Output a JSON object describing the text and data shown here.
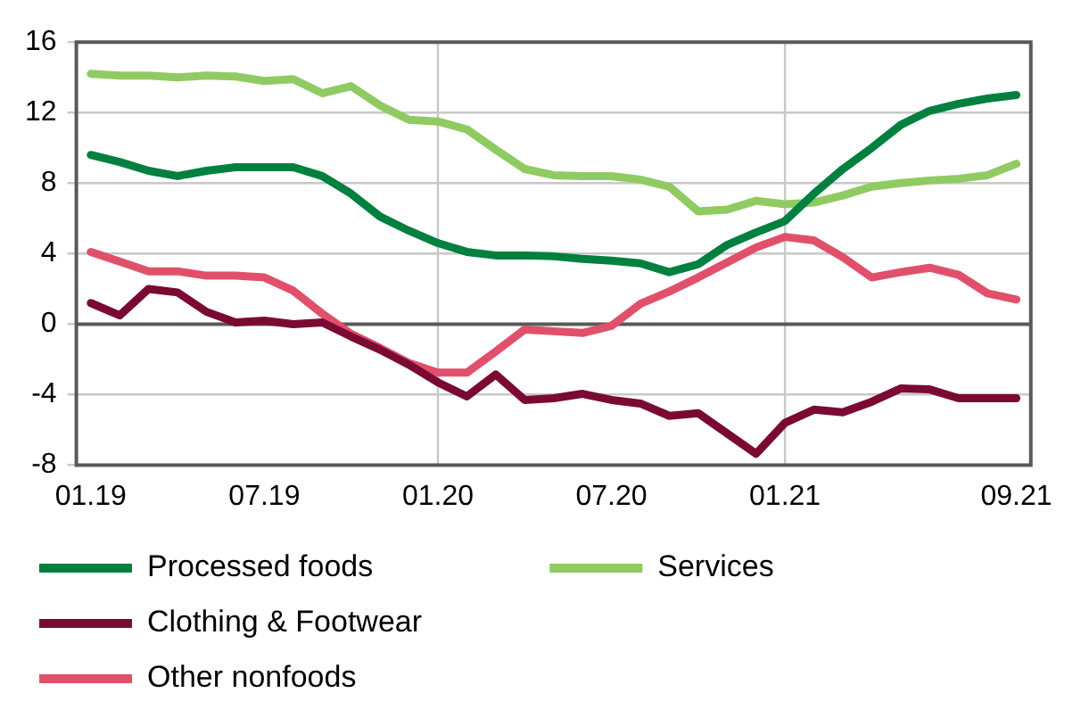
{
  "chart_data": {
    "type": "line",
    "categories": [
      "01.19",
      null,
      null,
      null,
      null,
      null,
      "07.19",
      null,
      null,
      null,
      null,
      null,
      "01.20",
      null,
      null,
      null,
      null,
      null,
      "07.20",
      null,
      null,
      null,
      null,
      null,
      "01.21",
      null,
      null,
      null,
      null,
      null,
      null,
      null,
      "09.21"
    ],
    "series": [
      {
        "name": "Processed foods",
        "color": "#00803f",
        "values": [
          9.6,
          9.2,
          8.7,
          8.4,
          8.7,
          8.9,
          8.9,
          8.9,
          8.4,
          7.4,
          6.1,
          5.3,
          4.6,
          4.1,
          3.9,
          3.9,
          3.85,
          3.7,
          3.6,
          3.45,
          2.95,
          3.4,
          4.5,
          5.2,
          5.85,
          7.4,
          8.8,
          10.0,
          11.3,
          12.1,
          12.5,
          12.8,
          13.0
        ]
      },
      {
        "name": "Services",
        "color": "#8fcb62",
        "values": [
          14.2,
          14.1,
          14.1,
          14.0,
          14.1,
          14.05,
          13.8,
          13.9,
          13.1,
          13.5,
          12.4,
          11.6,
          11.5,
          11.05,
          9.9,
          8.8,
          8.45,
          8.4,
          8.4,
          8.2,
          7.8,
          6.4,
          6.5,
          7.0,
          6.8,
          6.9,
          7.3,
          7.8,
          8.0,
          8.15,
          8.25,
          8.45,
          9.1
        ]
      },
      {
        "name": "Clothing & Footwear",
        "color": "#7a0a33",
        "values": [
          1.2,
          0.5,
          2.0,
          1.8,
          0.7,
          0.1,
          0.2,
          0.0,
          0.1,
          -0.7,
          -1.45,
          -2.3,
          -3.3,
          -4.1,
          -2.85,
          -4.3,
          -4.2,
          -3.95,
          -4.3,
          -4.5,
          -5.2,
          -5.05,
          -6.2,
          -7.35,
          -5.6,
          -4.85,
          -5.0,
          -4.4,
          -3.65,
          -3.7,
          -4.2,
          -4.2,
          -4.2
        ]
      },
      {
        "name": "Other nonfoods",
        "color": "#e0506a",
        "values": [
          4.1,
          3.55,
          3.0,
          3.0,
          2.75,
          2.75,
          2.65,
          1.9,
          0.6,
          -0.55,
          -1.35,
          -2.2,
          -2.75,
          -2.75,
          -1.55,
          -0.3,
          -0.4,
          -0.5,
          -0.1,
          1.15,
          1.85,
          2.65,
          3.5,
          4.35,
          4.95,
          4.75,
          3.8,
          2.65,
          2.95,
          3.2,
          2.8,
          1.75,
          1.4
        ]
      }
    ],
    "ylim": [
      -8,
      16
    ],
    "yticks": [
      -8,
      -4,
      0,
      4,
      8,
      12,
      16
    ],
    "grid": "y",
    "legend": "bottom",
    "marker": "none",
    "line_style": "solid",
    "ref_lines": [
      {
        "axis": "x",
        "value": "01.20",
        "color": "#c8c8c8"
      },
      {
        "axis": "x",
        "value": "01.21",
        "color": "#c8c8c8"
      }
    ]
  }
}
